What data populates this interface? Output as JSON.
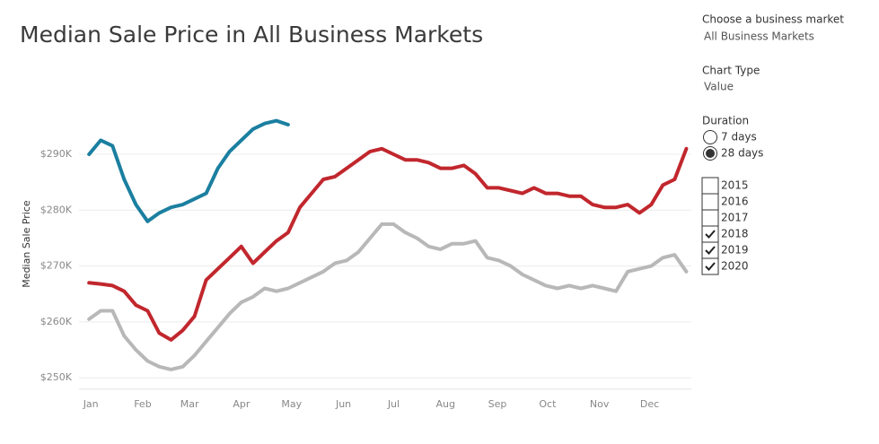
{
  "chart_data": {
    "type": "line",
    "title": "Median Sale Price in All Business Markets",
    "y_label": "Median Sale Price",
    "x": [
      1,
      8,
      15,
      22,
      29,
      36,
      43,
      50,
      57,
      64,
      71,
      78,
      85,
      92,
      99,
      106,
      113,
      120,
      127,
      134,
      141,
      148,
      155,
      162,
      169,
      176,
      183,
      190,
      197,
      204,
      211,
      218,
      225,
      232,
      239,
      246,
      253,
      260,
      267,
      274,
      281,
      288,
      295,
      302,
      309,
      316,
      323,
      330,
      337,
      344,
      351,
      358
    ],
    "xlim": [
      -5,
      361
    ],
    "xticks": [
      {
        "value": 1,
        "label": "Jan"
      },
      {
        "value": 32,
        "label": "Feb"
      },
      {
        "value": 60,
        "label": "Mar"
      },
      {
        "value": 91,
        "label": "Apr"
      },
      {
        "value": 121,
        "label": "May"
      },
      {
        "value": 152,
        "label": "Jun"
      },
      {
        "value": 182,
        "label": "Jul"
      },
      {
        "value": 213,
        "label": "Aug"
      },
      {
        "value": 244,
        "label": "Sep"
      },
      {
        "value": 274,
        "label": "Oct"
      },
      {
        "value": 305,
        "label": "Nov"
      },
      {
        "value": 335,
        "label": "Dec"
      }
    ],
    "ylim": [
      248000,
      299000
    ],
    "yticks": [
      {
        "value": 250000,
        "label": "$250K"
      },
      {
        "value": 260000,
        "label": "$260K"
      },
      {
        "value": 270000,
        "label": "$270K"
      },
      {
        "value": 280000,
        "label": "$280K"
      },
      {
        "value": 290000,
        "label": "$290K"
      }
    ],
    "grid": true,
    "series": [
      {
        "name": "2018",
        "color": "#b8b8b8",
        "values": [
          260500,
          262000,
          262000,
          257500,
          255000,
          253000,
          252000,
          251500,
          252000,
          254000,
          256500,
          259000,
          261500,
          263500,
          264500,
          266000,
          265500,
          266000,
          267000,
          268000,
          269000,
          270500,
          271000,
          272500,
          275000,
          277500,
          277500,
          276000,
          275000,
          273500,
          273000,
          274000,
          274000,
          274500,
          271500,
          271000,
          270000,
          268500,
          267500,
          266500,
          266000,
          266500,
          266000,
          266500,
          266000,
          265500,
          269000,
          269500,
          270000,
          271500,
          272000,
          269000
        ]
      },
      {
        "name": "2019",
        "color": "#c1272d",
        "values": [
          267000,
          266800,
          266500,
          265500,
          263000,
          262000,
          258000,
          256800,
          258500,
          261000,
          267500,
          269500,
          271500,
          273500,
          270500,
          272500,
          274500,
          276000,
          280500,
          283000,
          285500,
          286000,
          287500,
          289000,
          290500,
          291000,
          290000,
          289000,
          289000,
          288500,
          287500,
          287500,
          288000,
          286500,
          284000,
          284000,
          283500,
          283000,
          284000,
          283000,
          283000,
          282500,
          282500,
          281000,
          280500,
          280500,
          281000,
          279500,
          281000,
          284500,
          285500,
          291000
        ]
      },
      {
        "name": "2020",
        "color": "#1b7fa0",
        "values": [
          290000,
          292500,
          291500,
          285500,
          281000,
          278000,
          279500,
          280500,
          281000,
          282000,
          283000,
          287500,
          290500,
          292500,
          294500,
          295500,
          296000,
          295300,
          null,
          null,
          null,
          null,
          null,
          null,
          null,
          null,
          null,
          null,
          null,
          null,
          null,
          null,
          null,
          null,
          null,
          null,
          null,
          null,
          null,
          null,
          null,
          null,
          null,
          null,
          null,
          null,
          null,
          null,
          null,
          null,
          null,
          null
        ]
      }
    ]
  },
  "controls": {
    "market": {
      "label": "Choose a business market",
      "value": "All Business Markets"
    },
    "chart_type": {
      "label": "Chart Type",
      "value": "Value"
    },
    "duration": {
      "label": "Duration",
      "options": [
        "7 days",
        "28 days"
      ],
      "selected": 1
    },
    "other_years": [
      "2015",
      "2016",
      "2017"
    ]
  }
}
